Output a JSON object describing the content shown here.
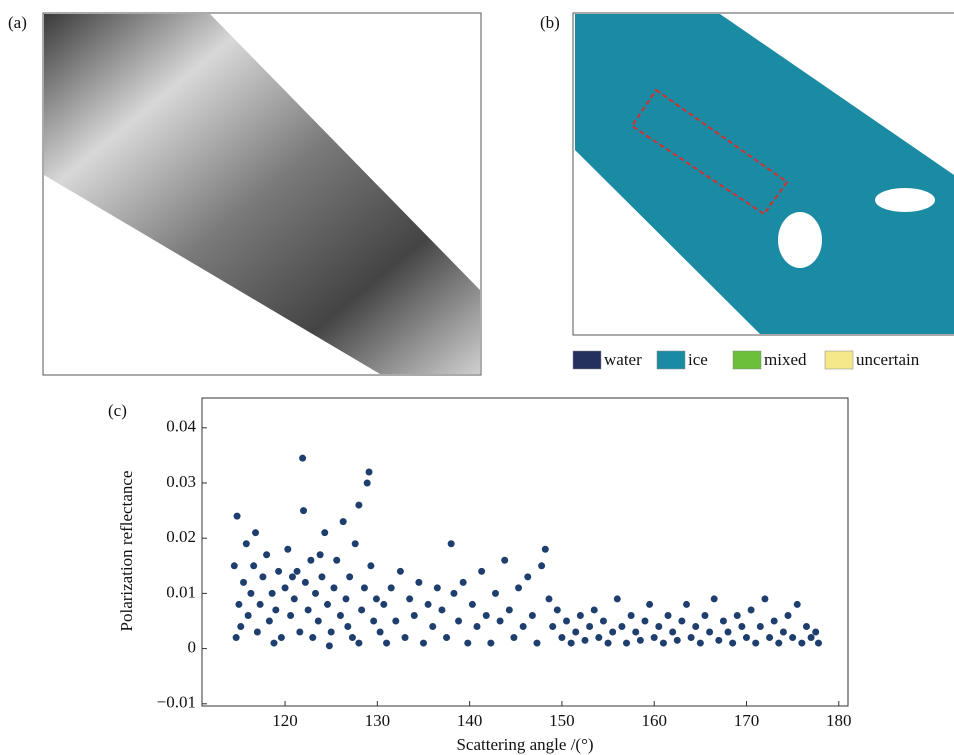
{
  "panels": {
    "a": {
      "label": "(a)"
    },
    "b": {
      "label": "(b)",
      "legend": [
        {
          "name": "water",
          "color": "#24305e"
        },
        {
          "name": "ice",
          "color": "#1b8aa3"
        },
        {
          "name": "mixed",
          "color": "#6bbf3a"
        },
        {
          "name": "uncertain",
          "color": "#f3e98a"
        }
      ]
    }
  },
  "chart_data": {
    "type": "scatter",
    "label": "(c)",
    "xlabel": "Scattering angle /(°)",
    "ylabel": "Polarization reflectance",
    "color": "#1e3f6e",
    "xlim": [
      111,
      181
    ],
    "ylim": [
      -0.0104,
      0.0454
    ],
    "xticks": [
      120,
      130,
      140,
      150,
      160,
      170,
      180
    ],
    "yticks": [
      {
        "value": -0.01,
        "label": "−0.01"
      },
      0,
      0.01,
      0.02,
      0.03,
      0.04
    ],
    "x": [
      114.5,
      114.8,
      115.0,
      115.2,
      115.5,
      115.8,
      116.0,
      116.3,
      116.6,
      117.0,
      117.3,
      117.6,
      118.0,
      118.3,
      118.6,
      119.0,
      119.3,
      119.6,
      120.0,
      120.3,
      120.6,
      121.0,
      121.3,
      121.6,
      121.9,
      122.0,
      122.2,
      122.5,
      122.8,
      123.0,
      123.3,
      123.6,
      124.0,
      124.3,
      124.6,
      125.0,
      125.3,
      125.6,
      126.0,
      126.3,
      126.6,
      127.0,
      127.3,
      127.6,
      128.0,
      128.3,
      128.6,
      128.9,
      129.1,
      129.3,
      129.6,
      129.9,
      114.7,
      116.8,
      118.8,
      120.8,
      123.8,
      126.8,
      128.0,
      124.8,
      130.3,
      130.7,
      131.0,
      131.5,
      132.0,
      132.5,
      133.0,
      133.5,
      134.0,
      134.5,
      135.0,
      135.5,
      136.0,
      136.5,
      137.0,
      137.5,
      138.0,
      138.3,
      138.8,
      139.3,
      139.8,
      140.3,
      140.8,
      141.3,
      141.8,
      142.3,
      142.8,
      143.3,
      143.8,
      144.3,
      144.8,
      145.3,
      145.8,
      146.3,
      146.8,
      147.3,
      147.8,
      148.2,
      148.6,
      149.0,
      149.5,
      150.0,
      150.5,
      151.0,
      151.5,
      152.0,
      152.5,
      153.0,
      153.5,
      154.0,
      154.5,
      155.0,
      155.5,
      156.0,
      156.5,
      157.0,
      157.5,
      158.0,
      158.5,
      159.0,
      159.5,
      160.0,
      160.5,
      161.0,
      161.5,
      162.0,
      162.5,
      163.0,
      163.5,
      164.0,
      164.5,
      165.0,
      165.5,
      166.0,
      166.5,
      167.0,
      167.5,
      168.0,
      168.5,
      169.0,
      169.5,
      170.0,
      170.5,
      171.0,
      171.5,
      172.0,
      172.5,
      173.0,
      173.5,
      174.0,
      174.5,
      175.0,
      175.5,
      176.0,
      176.5,
      177.0,
      177.5,
      177.8
    ],
    "y": [
      0.015,
      0.024,
      0.008,
      0.004,
      0.012,
      0.019,
      0.006,
      0.01,
      0.015,
      0.003,
      0.008,
      0.013,
      0.017,
      0.005,
      0.01,
      0.007,
      0.014,
      0.002,
      0.011,
      0.018,
      0.006,
      0.009,
      0.014,
      0.003,
      0.0345,
      0.025,
      0.012,
      0.007,
      0.016,
      0.002,
      0.01,
      0.005,
      0.013,
      0.021,
      0.008,
      0.003,
      0.011,
      0.016,
      0.006,
      0.023,
      0.009,
      0.013,
      0.002,
      0.019,
      0.026,
      0.007,
      0.011,
      0.03,
      0.032,
      0.015,
      0.005,
      0.009,
      0.002,
      0.021,
      0.001,
      0.013,
      0.017,
      0.004,
      0.001,
      0.0005,
      0.003,
      0.008,
      0.001,
      0.011,
      0.005,
      0.014,
      0.002,
      0.009,
      0.006,
      0.012,
      0.001,
      0.008,
      0.004,
      0.011,
      0.007,
      0.002,
      0.019,
      0.01,
      0.005,
      0.012,
      0.001,
      0.008,
      0.004,
      0.014,
      0.006,
      0.001,
      0.01,
      0.005,
      0.016,
      0.007,
      0.002,
      0.011,
      0.004,
      0.013,
      0.006,
      0.001,
      0.015,
      0.018,
      0.009,
      0.004,
      0.007,
      0.002,
      0.005,
      0.001,
      0.003,
      0.006,
      0.0015,
      0.004,
      0.007,
      0.002,
      0.005,
      0.001,
      0.003,
      0.009,
      0.004,
      0.001,
      0.006,
      0.003,
      0.0015,
      0.005,
      0.008,
      0.002,
      0.004,
      0.001,
      0.006,
      0.003,
      0.0015,
      0.005,
      0.008,
      0.002,
      0.004,
      0.001,
      0.006,
      0.003,
      0.009,
      0.0015,
      0.005,
      0.003,
      0.001,
      0.006,
      0.004,
      0.002,
      0.007,
      0.001,
      0.004,
      0.009,
      0.002,
      0.005,
      0.001,
      0.003,
      0.006,
      0.002,
      0.008,
      0.001,
      0.004,
      0.002,
      0.003,
      0.001
    ]
  }
}
